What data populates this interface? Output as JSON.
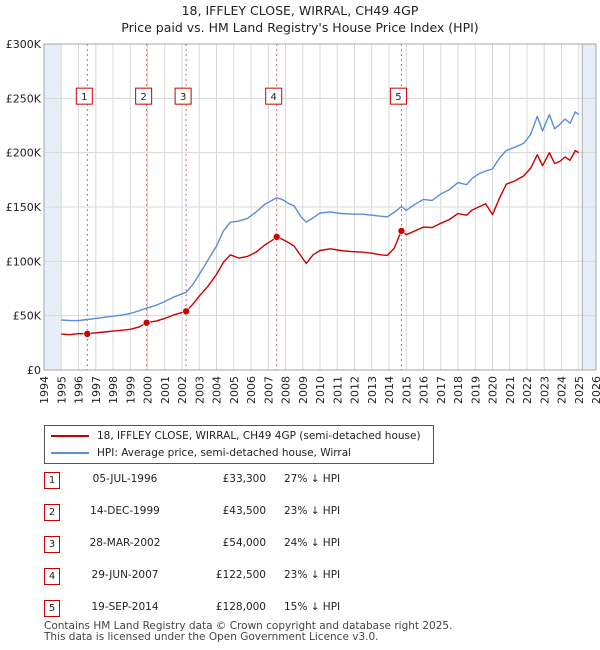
{
  "header": {
    "title_line1": "18, IFFLEY CLOSE, WIRRAL, CH49 4GP",
    "title_line2": "Price paid vs. HM Land Registry's House Price Index (HPI)"
  },
  "colors": {
    "price_line": "#cc0000",
    "hpi_line": "#5b8dd6",
    "shade": "#e8eef8",
    "grid": "#d8d8d8",
    "marker_border": "#cc0000"
  },
  "legend": {
    "items": [
      {
        "label": "18, IFFLEY CLOSE, WIRRAL, CH49 4GP (semi-detached house)",
        "color": "#cc0000"
      },
      {
        "label": "HPI: Average price, semi-detached house, Wirral",
        "color": "#5b8dd6"
      }
    ]
  },
  "transactions": [
    {
      "num": "1",
      "date": "05-JUL-1996",
      "price": "£33,300",
      "hpi": "27% ↓ HPI"
    },
    {
      "num": "2",
      "date": "14-DEC-1999",
      "price": "£43,500",
      "hpi": "23% ↓ HPI"
    },
    {
      "num": "3",
      "date": "28-MAR-2002",
      "price": "£54,000",
      "hpi": "24% ↓ HPI"
    },
    {
      "num": "4",
      "date": "29-JUN-2007",
      "price": "£122,500",
      "hpi": "23% ↓ HPI"
    },
    {
      "num": "5",
      "date": "19-SEP-2014",
      "price": "£128,000",
      "hpi": "15% ↓ HPI"
    }
  ],
  "footer": {
    "line1": "Contains HM Land Registry data © Crown copyright and database right 2025.",
    "line2": "This data is licensed under the Open Government Licence v3.0."
  },
  "chart_data": {
    "type": "line",
    "title": "18, IFFLEY CLOSE, WIRRAL, CH49 4GP",
    "subtitle": "Price paid vs. HM Land Registry's House Price Index (HPI)",
    "xlabel": "",
    "ylabel": "",
    "xlim": [
      1994,
      2026
    ],
    "ylim": [
      0,
      300000
    ],
    "x_ticks": [
      1994,
      1995,
      1996,
      1997,
      1998,
      1999,
      2000,
      2001,
      2002,
      2003,
      2004,
      2005,
      2006,
      2007,
      2008,
      2009,
      2010,
      2011,
      2012,
      2013,
      2014,
      2015,
      2016,
      2017,
      2018,
      2019,
      2020,
      2021,
      2022,
      2023,
      2024,
      2025,
      2026
    ],
    "y_ticks": [
      0,
      50000,
      100000,
      150000,
      200000,
      250000,
      300000
    ],
    "y_tick_labels": [
      "£0",
      "£50K",
      "£100K",
      "£150K",
      "£200K",
      "£250K",
      "£300K"
    ],
    "grid": true,
    "shaded_ranges": [
      [
        1994,
        1995
      ],
      [
        2025.2,
        2026
      ]
    ],
    "sale_markers": [
      {
        "label": "1",
        "x": 1996.51,
        "y": 33300
      },
      {
        "label": "2",
        "x": 1999.95,
        "y": 43500
      },
      {
        "label": "3",
        "x": 2002.24,
        "y": 54000
      },
      {
        "label": "4",
        "x": 2007.49,
        "y": 122500
      },
      {
        "label": "5",
        "x": 2014.72,
        "y": 128000
      }
    ],
    "marker_box_y": 252000,
    "series": [
      {
        "name": "18, IFFLEY CLOSE, WIRRAL, CH49 4GP (semi-detached house)",
        "color": "#cc0000",
        "points": [
          [
            1995.0,
            33000
          ],
          [
            1995.5,
            32500
          ],
          [
            1996.0,
            33500
          ],
          [
            1996.51,
            33300
          ],
          [
            1997.0,
            34200
          ],
          [
            1997.5,
            35000
          ],
          [
            1998.0,
            35800
          ],
          [
            1998.5,
            36500
          ],
          [
            1999.0,
            37500
          ],
          [
            1999.5,
            39500
          ],
          [
            1999.95,
            43500
          ],
          [
            2000.5,
            45000
          ],
          [
            2001.0,
            47500
          ],
          [
            2001.5,
            50500
          ],
          [
            2002.24,
            54000
          ],
          [
            2002.6,
            60000
          ],
          [
            2003.0,
            68000
          ],
          [
            2003.5,
            77000
          ],
          [
            2004.0,
            88000
          ],
          [
            2004.4,
            99000
          ],
          [
            2004.8,
            106000
          ],
          [
            2005.3,
            103000
          ],
          [
            2005.8,
            104500
          ],
          [
            2006.3,
            108500
          ],
          [
            2006.8,
            115000
          ],
          [
            2007.2,
            119000
          ],
          [
            2007.49,
            122500
          ],
          [
            2007.8,
            120500
          ],
          [
            2008.2,
            117000
          ],
          [
            2008.5,
            114000
          ],
          [
            2008.9,
            105000
          ],
          [
            2009.2,
            98000
          ],
          [
            2009.6,
            106000
          ],
          [
            2010.0,
            110000
          ],
          [
            2010.6,
            111500
          ],
          [
            2011.2,
            110000
          ],
          [
            2011.8,
            109000
          ],
          [
            2012.4,
            108500
          ],
          [
            2013.0,
            107500
          ],
          [
            2013.5,
            106000
          ],
          [
            2013.9,
            105500
          ],
          [
            2014.3,
            112000
          ],
          [
            2014.72,
            128000
          ],
          [
            2015.0,
            124500
          ],
          [
            2015.5,
            128000
          ],
          [
            2016.0,
            131500
          ],
          [
            2016.5,
            131000
          ],
          [
            2017.0,
            135000
          ],
          [
            2017.5,
            138500
          ],
          [
            2018.0,
            144000
          ],
          [
            2018.5,
            142500
          ],
          [
            2018.8,
            147000
          ],
          [
            2019.2,
            150000
          ],
          [
            2019.6,
            153000
          ],
          [
            2020.0,
            143000
          ],
          [
            2020.4,
            158000
          ],
          [
            2020.8,
            171000
          ],
          [
            2021.3,
            174000
          ],
          [
            2021.8,
            178500
          ],
          [
            2022.2,
            185500
          ],
          [
            2022.6,
            198000
          ],
          [
            2022.9,
            188000
          ],
          [
            2023.3,
            200000
          ],
          [
            2023.6,
            190000
          ],
          [
            2023.9,
            192000
          ],
          [
            2024.2,
            196000
          ],
          [
            2024.5,
            193000
          ],
          [
            2024.8,
            202000
          ],
          [
            2025.0,
            200000
          ]
        ]
      },
      {
        "name": "HPI: Average price, semi-detached house, Wirral",
        "color": "#5b8dd6",
        "points": [
          [
            1995.0,
            46000
          ],
          [
            1995.5,
            45500
          ],
          [
            1996.0,
            45500
          ],
          [
            1996.51,
            46500
          ],
          [
            1997.0,
            47500
          ],
          [
            1997.5,
            48500
          ],
          [
            1998.0,
            49500
          ],
          [
            1998.5,
            50500
          ],
          [
            1999.0,
            52000
          ],
          [
            1999.5,
            54500
          ],
          [
            1999.95,
            57000
          ],
          [
            2000.5,
            59500
          ],
          [
            2001.0,
            63000
          ],
          [
            2001.5,
            67000
          ],
          [
            2002.24,
            71500
          ],
          [
            2002.6,
            78000
          ],
          [
            2003.0,
            88000
          ],
          [
            2003.5,
            101000
          ],
          [
            2004.0,
            114000
          ],
          [
            2004.4,
            128000
          ],
          [
            2004.8,
            136000
          ],
          [
            2005.3,
            137000
          ],
          [
            2005.8,
            139500
          ],
          [
            2006.3,
            145500
          ],
          [
            2006.8,
            152500
          ],
          [
            2007.2,
            156000
          ],
          [
            2007.49,
            158500
          ],
          [
            2007.8,
            157000
          ],
          [
            2008.2,
            153000
          ],
          [
            2008.5,
            151000
          ],
          [
            2008.9,
            141000
          ],
          [
            2009.2,
            136000
          ],
          [
            2009.6,
            140000
          ],
          [
            2010.0,
            144500
          ],
          [
            2010.6,
            145500
          ],
          [
            2011.2,
            144000
          ],
          [
            2011.8,
            143500
          ],
          [
            2012.4,
            143500
          ],
          [
            2013.0,
            142500
          ],
          [
            2013.5,
            141500
          ],
          [
            2013.9,
            141000
          ],
          [
            2014.3,
            145000
          ],
          [
            2014.72,
            150500
          ],
          [
            2015.0,
            147000
          ],
          [
            2015.5,
            152500
          ],
          [
            2016.0,
            157000
          ],
          [
            2016.5,
            156000
          ],
          [
            2017.0,
            162000
          ],
          [
            2017.5,
            166000
          ],
          [
            2018.0,
            172500
          ],
          [
            2018.5,
            170500
          ],
          [
            2018.8,
            176000
          ],
          [
            2019.2,
            180500
          ],
          [
            2019.6,
            183000
          ],
          [
            2020.0,
            185000
          ],
          [
            2020.4,
            195000
          ],
          [
            2020.8,
            202000
          ],
          [
            2021.3,
            205000
          ],
          [
            2021.8,
            208500
          ],
          [
            2022.2,
            216500
          ],
          [
            2022.6,
            233500
          ],
          [
            2022.9,
            220000
          ],
          [
            2023.3,
            235000
          ],
          [
            2023.6,
            222000
          ],
          [
            2023.9,
            226000
          ],
          [
            2024.2,
            231000
          ],
          [
            2024.5,
            227000
          ],
          [
            2024.8,
            237500
          ],
          [
            2025.0,
            235000
          ]
        ]
      }
    ]
  }
}
